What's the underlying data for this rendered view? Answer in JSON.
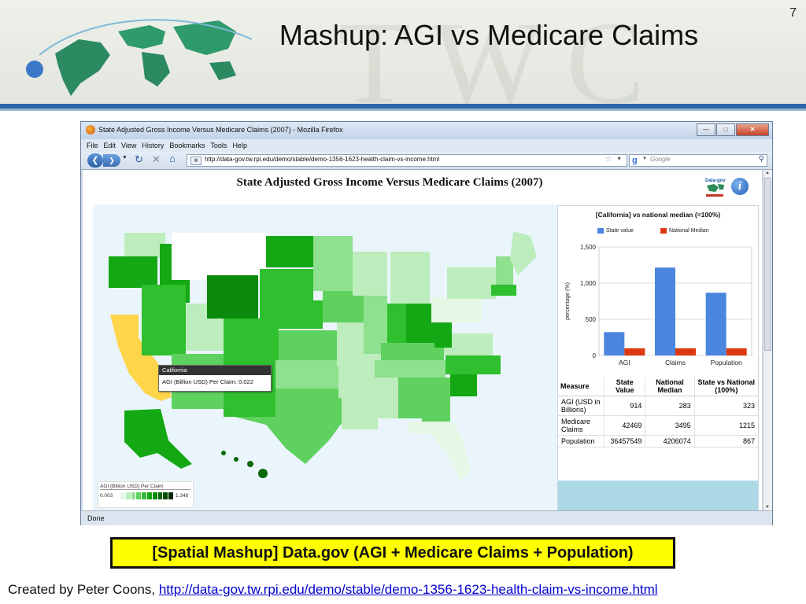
{
  "slide": {
    "title": "Mashup: AGI vs Medicare Claims",
    "page_number": "7",
    "watermark": "TWC",
    "caption": "[Spatial Mashup] Data.gov (AGI + Medicare Claims + Population)",
    "credit_prefix": "Created by Peter Coons,",
    "credit_link": "http://data-gov.tw.rpi.edu/demo/stable/demo-1356-1623-health-claim-vs-income.html"
  },
  "browser": {
    "window_title": "State Adjusted Gross Income Versus Medicare Claims (2007) - Mozilla Firefox",
    "menu": [
      "File",
      "Edit",
      "View",
      "History",
      "Bookmarks",
      "Tools",
      "Help"
    ],
    "url": "http://data-gov.tw.rpi.edu/demo/stable/demo-1356-1623-health-claim-vs-income.html",
    "search_placeholder": "Google",
    "status": "Done"
  },
  "page": {
    "heading": "State Adjusted Gross Income Versus Medicare Claims (2007)",
    "logo_text": "Data-gov"
  },
  "map": {
    "tooltip_title": "California",
    "tooltip_text": "AGI (Billion USD) Per Claim: 0.022",
    "legend_title": "AGI (Billion USD) Per Claim",
    "legend_min": "0.003",
    "legend_max": "1.348",
    "legend_colors": [
      "#e6f7e6",
      "#bdedbd",
      "#8fe08f",
      "#5fd15f",
      "#2fbf2f",
      "#14a814",
      "#0b8a0b",
      "#066906",
      "#034803",
      "#012a01"
    ],
    "highlight_color": "#ffd54a"
  },
  "chart_data": {
    "type": "bar",
    "title": "[California] vs national median (=100%)",
    "ylabel": "percentage (%)",
    "categories": [
      "AGI",
      "Claims",
      "Population"
    ],
    "series": [
      {
        "name": "State value",
        "color": "#4a86e0",
        "values": [
          323,
          1215,
          867
        ]
      },
      {
        "name": "National Median",
        "color": "#dc3912",
        "values": [
          100,
          100,
          100
        ]
      }
    ],
    "ylim": [
      0,
      1500
    ],
    "yticks": [
      "0",
      "500",
      "1,000",
      "1,500"
    ],
    "ytick_values": [
      0,
      500,
      1000,
      1500
    ]
  },
  "table": {
    "headers": [
      "Measure",
      "State Value",
      "National Median",
      "State vs National (100%)"
    ],
    "rows": [
      [
        "AGI (USD in Billions)",
        "914",
        "283",
        "323"
      ],
      [
        "Medicare Claims",
        "42469",
        "3495",
        "1215"
      ],
      [
        "Population",
        "36457549",
        "4206074",
        "867"
      ]
    ]
  }
}
